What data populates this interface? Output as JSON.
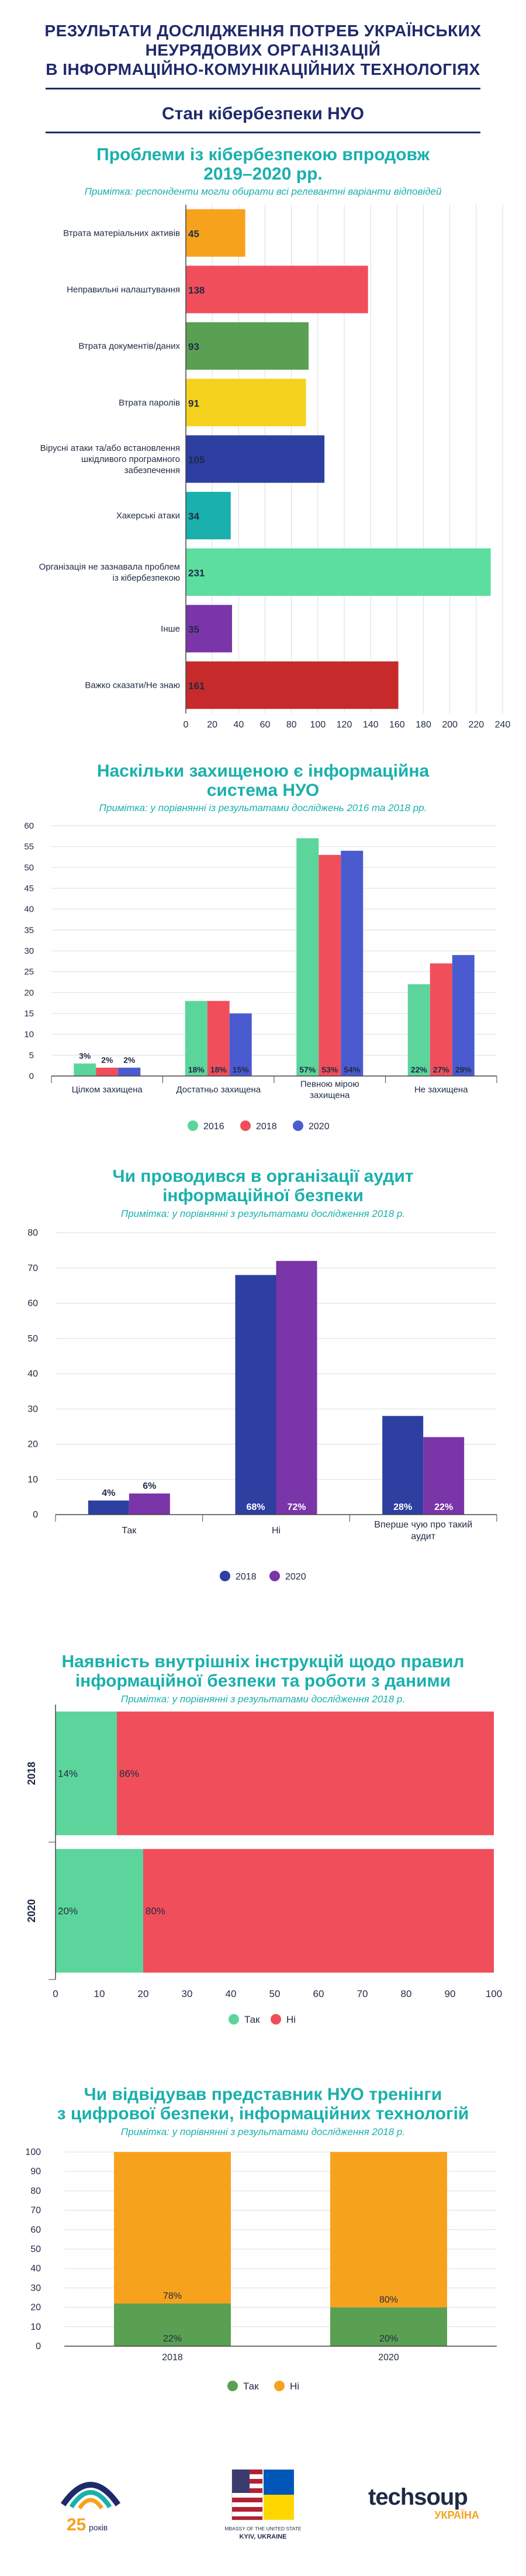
{
  "header": {
    "line1": "РЕЗУЛЬТАТИ ДОСЛІДЖЕННЯ ПОТРЕБ УКРАЇНСЬКИХ",
    "line2": "НЕУРЯДОВИХ ОРГАНІЗАЦІЙ",
    "line3": "В ІНФОРМАЦІЙНО-КОМУНІКАЦІЙНИХ ТЕХНОЛОГІЯХ",
    "subtitle": "Стан кібербезпеки НУО"
  },
  "colors": {
    "teal": "#1ab0ad",
    "navy": "#1f2a6b",
    "green": "#5cd59c",
    "red": "#f04e5b",
    "blue": "#4a5bd0",
    "dark_blue": "#2d3fa0",
    "purple": "#7a35a8",
    "orange": "#f7a21d",
    "dark_green": "#5aa052"
  },
  "chart_data": [
    {
      "type": "bar",
      "orientation": "horizontal",
      "title_line1": "Проблеми із кібербезпекою впродовж",
      "title_line2": "2019–2020 рр.",
      "note": "Примітка: респонденти могли обирати всі релевантні варіанти відповідей",
      "categories": [
        "Втрата матеріальних активів",
        "Неправильні налаштування",
        "Втрата документів/даних",
        "Втрата паролів",
        "Вірусні атаки та/або встановлення|шкідливого програмного|забезпечення",
        "Хакерські атаки",
        "Організація не зазнавала проблем|із кібербезпекою",
        "Інше",
        "Важко сказати/Не знаю"
      ],
      "values": [
        45,
        138,
        93,
        91,
        105,
        34,
        231,
        35,
        161
      ],
      "colors": [
        "#f7a21d",
        "#f04e5b",
        "#5aa052",
        "#f5d21e",
        "#2d3fa0",
        "#1ab0ad",
        "#5cdea0",
        "#7a35a8",
        "#c72a2a"
      ],
      "xlim": [
        0,
        240
      ],
      "xticks": [
        0,
        20,
        40,
        60,
        80,
        100,
        120,
        140,
        160,
        180,
        200,
        220,
        240
      ],
      "grid": true
    },
    {
      "type": "bar",
      "title_line1": "Наскільки захищеною є інформаційна",
      "title_line2": "система НУО",
      "note": "Примітка: у порівнянні із результатами досліджень 2016 та 2018 рр.",
      "categories": [
        "Цілком захищена",
        "Достатньо захищена",
        "Певною мірою|захищена",
        "Не захищена"
      ],
      "series": [
        {
          "name": "2016",
          "color": "#5cd59c",
          "values": [
            3,
            18,
            57,
            22
          ],
          "labels": [
            "3%",
            "18%",
            "57%",
            "22%"
          ]
        },
        {
          "name": "2018",
          "color": "#f04e5b",
          "values": [
            2,
            18,
            53,
            27
          ],
          "labels": [
            "2%",
            "18%",
            "53%",
            "27%"
          ]
        },
        {
          "name": "2020",
          "color": "#4a5bd0",
          "values": [
            2,
            15,
            54,
            29
          ],
          "labels": [
            "2%",
            "15%",
            "54%",
            "29%"
          ]
        }
      ],
      "ylim": [
        0,
        60
      ],
      "yticks": [
        0,
        5,
        10,
        15,
        20,
        25,
        30,
        35,
        40,
        45,
        50,
        55,
        60
      ],
      "legend": "bottom"
    },
    {
      "type": "bar",
      "title_line1": "Чи проводився в організації аудит",
      "title_line2": "інформаційної безпеки",
      "note": "Примітка: у порівнянні з результатами дослідження 2018 р.",
      "categories": [
        "Так",
        "Ні",
        "Вперше чую про такий|аудит"
      ],
      "series": [
        {
          "name": "2018",
          "color": "#2d3fa0",
          "values": [
            4,
            68,
            28
          ],
          "labels": [
            "4%",
            "68%",
            "28%"
          ]
        },
        {
          "name": "2020",
          "color": "#7a35a8",
          "values": [
            6,
            72,
            22
          ],
          "labels": [
            "6%",
            "72%",
            "22%"
          ]
        }
      ],
      "ylim": [
        0,
        80
      ],
      "yticks": [
        0,
        10,
        20,
        30,
        40,
        50,
        60,
        70,
        80
      ],
      "legend": "bottom"
    },
    {
      "type": "bar",
      "orientation": "horizontal-stacked",
      "title_line1": "Наявність внутрішніх інструкцій щодо правил",
      "title_line2": "інформаційної безпеки та роботи з даними",
      "note": "Примітка: у порівнянні з результатами дослідження 2018 р.",
      "categories": [
        "2018",
        "2020"
      ],
      "series": [
        {
          "name": "Так",
          "color": "#5cd59c",
          "values": [
            14,
            20
          ],
          "labels": [
            "14%",
            "20%"
          ]
        },
        {
          "name": "Ні",
          "color": "#f04e5b",
          "values": [
            86,
            80
          ],
          "labels": [
            "86%",
            "80%"
          ]
        }
      ],
      "xlim": [
        0,
        100
      ],
      "xticks": [
        0,
        10,
        20,
        30,
        40,
        50,
        60,
        70,
        80,
        90,
        100
      ],
      "legend": "bottom"
    },
    {
      "type": "bar",
      "orientation": "vertical-stacked",
      "title_line1": "Чи відвідував представник НУО тренінги",
      "title_line2": "з цифрової безпеки, інформаційних технологій",
      "note": "Примітка: у порівнянні з результатами дослідження 2018 р.",
      "categories": [
        "2018",
        "2020"
      ],
      "series": [
        {
          "name": "Так",
          "color": "#5aa052",
          "values": [
            22,
            20
          ],
          "labels": [
            "22%",
            "20%"
          ]
        },
        {
          "name": "Ні",
          "color": "#f7a21d",
          "values": [
            78,
            80
          ],
          "labels": [
            "78%",
            "80%"
          ]
        }
      ],
      "ylim": [
        0,
        100
      ],
      "yticks": [
        0,
        10,
        20,
        30,
        40,
        50,
        60,
        70,
        80,
        90,
        100
      ],
      "legend": "bottom"
    }
  ],
  "footer": {
    "logo1_years": "25",
    "logo1_word": "років",
    "embassy_line1": "EMBASSY OF THE UNITED STATES",
    "embassy_line2": "KYIV, UKRAINE",
    "techsoup_word": "techsoup",
    "techsoup_country": "УКРАЇНА"
  }
}
